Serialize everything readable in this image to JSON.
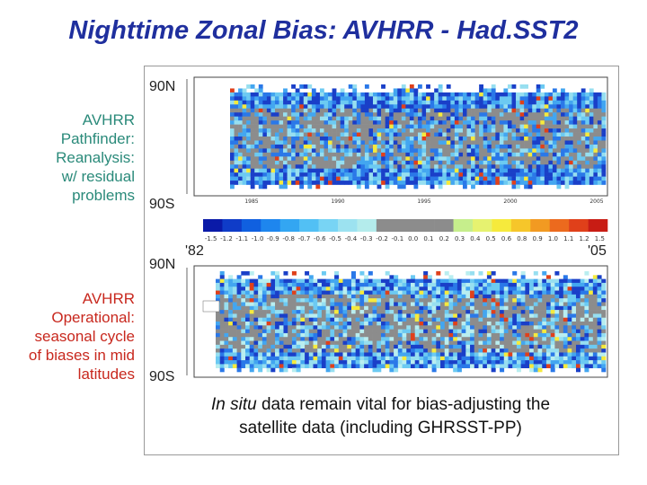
{
  "title": "Nighttime Zonal Bias: AVHRR - Had.SST2",
  "panel_a": {
    "label": [
      "AVHRR",
      "Pathfinder:",
      "Reanalysis:",
      "w/ residual",
      "problems"
    ],
    "lat_top": "90N",
    "lat_bottom": "90S",
    "years": [
      "1985",
      "1990",
      "1995",
      "2000",
      "2005"
    ]
  },
  "panel_b": {
    "label": [
      "AVHRR",
      "Operational:",
      "seasonal cycle",
      "of biases in mid",
      "latitudes"
    ],
    "lat_top": "90N",
    "lat_bottom": "90S"
  },
  "year_start": "'82",
  "year_end": "'05",
  "colorbar": {
    "colors": [
      "#0a1aa8",
      "#0f3cc8",
      "#1060e0",
      "#1e86ee",
      "#33a6f2",
      "#52c0f4",
      "#78d4f4",
      "#9ce2f0",
      "#b4ecec",
      "#8c8c8c",
      "#8c8c8c",
      "#8c8c8c",
      "#8c8c8c",
      "#c6ee8c",
      "#e6f270",
      "#f6ea3c",
      "#f6c62a",
      "#f29a22",
      "#ec6a1e",
      "#e0401a",
      "#c81c14"
    ],
    "labels": [
      "-1.5",
      "-1.2",
      "-1.1",
      "-1.0",
      "-0.9",
      "-0.8",
      "-0.7",
      "-0.6",
      "-0.5",
      "-0.4",
      "-0.3",
      "-0.2",
      "-0.1",
      "0.0",
      "0.1",
      "0.2",
      "0.3",
      "0.4",
      "0.5",
      "0.6",
      "0.8",
      "0.9",
      "1.0",
      "1.1",
      "1.2",
      "1.5"
    ]
  },
  "caption": {
    "italic": "In situ",
    "line1": " data remain vital for bias-adjusting the",
    "line2": "satellite data (including GHRSST-PP)"
  }
}
